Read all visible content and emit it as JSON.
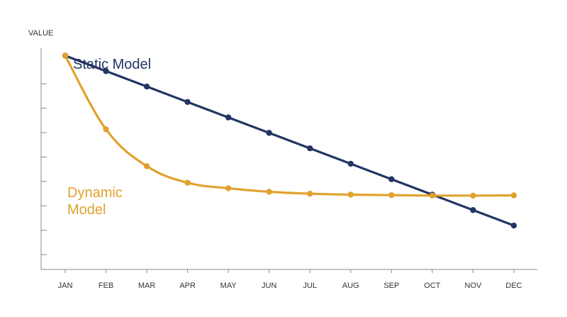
{
  "chart_data": {
    "type": "line",
    "title": "",
    "xlabel": "",
    "ylabel": "VALUE",
    "categories": [
      "JAN",
      "FEB",
      "MAR",
      "APR",
      "MAY",
      "JUN",
      "JUL",
      "AUG",
      "SEP",
      "OCT",
      "NOV",
      "DEC"
    ],
    "ylim": [
      0,
      10
    ],
    "grid": false,
    "y_tick_labels": false,
    "series": [
      {
        "name": "Static Model",
        "color": "#233564",
        "values": [
          9.0,
          8.35,
          7.7,
          7.05,
          6.4,
          5.75,
          5.1,
          4.45,
          3.8,
          3.15,
          2.5,
          1.85
        ],
        "smooth": false
      },
      {
        "name": "Dynamic Model",
        "color": "#E0A22E",
        "values": [
          9.0,
          5.9,
          4.35,
          3.65,
          3.42,
          3.27,
          3.19,
          3.15,
          3.13,
          3.11,
          3.11,
          3.12
        ],
        "smooth": true
      }
    ]
  }
}
